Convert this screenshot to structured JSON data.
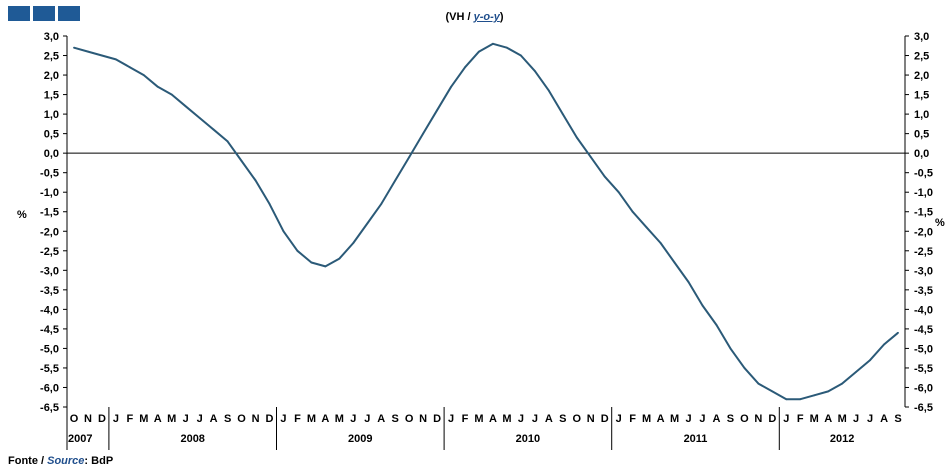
{
  "header": {
    "title_pt": "(VH /",
    "title_en": "y-o-y",
    "title_close": ")"
  },
  "footer": {
    "source_label_pt": "Fonte /",
    "source_label_en": "Source",
    "source_sep": ":",
    "source_value": "BdP"
  },
  "colors": {
    "line": "#2b5a78",
    "logo": "#1f5a96",
    "accent_text": "#1f4e8c"
  },
  "chart_data": {
    "type": "line",
    "ylabel_left": "%",
    "ylabel_right": "%",
    "ylim": [
      -6.5,
      3.0
    ],
    "ytick_step": 0.5,
    "ytick_labels": [
      "3,0",
      "2,5",
      "2,0",
      "1,5",
      "1,0",
      "0,5",
      "0,0",
      "-0,5",
      "-1,0",
      "-1,5",
      "-2,0",
      "-2,5",
      "-3,0",
      "-3,5",
      "-4,0",
      "-4,5",
      "-5,0",
      "-5,5",
      "-6,0",
      "-6,5"
    ],
    "x_months": [
      "O",
      "N",
      "D",
      "J",
      "F",
      "M",
      "A",
      "M",
      "J",
      "J",
      "A",
      "S",
      "O",
      "N",
      "D",
      "J",
      "F",
      "M",
      "A",
      "M",
      "J",
      "J",
      "A",
      "S",
      "O",
      "N",
      "D",
      "J",
      "F",
      "M",
      "A",
      "M",
      "J",
      "J",
      "A",
      "S",
      "O",
      "N",
      "D",
      "J",
      "F",
      "M",
      "A",
      "M",
      "J",
      "J",
      "A",
      "S",
      "O",
      "N",
      "D",
      "J",
      "F",
      "M",
      "A",
      "M",
      "J",
      "J",
      "A",
      "S"
    ],
    "year_labels": [
      "2007",
      "2008",
      "2009",
      "2010",
      "2011",
      "2012"
    ],
    "year_month_counts": [
      3,
      12,
      12,
      12,
      12,
      9
    ],
    "grid": false,
    "series": [
      {
        "values": [
          2.7,
          2.6,
          2.5,
          2.4,
          2.2,
          2.0,
          1.7,
          1.5,
          1.2,
          0.9,
          0.6,
          0.3,
          -0.2,
          -0.7,
          -1.3,
          -2.0,
          -2.5,
          -2.8,
          -2.9,
          -2.7,
          -2.3,
          -1.8,
          -1.3,
          -0.7,
          -0.1,
          0.5,
          1.1,
          1.7,
          2.2,
          2.6,
          2.8,
          2.7,
          2.5,
          2.1,
          1.6,
          1.0,
          0.4,
          -0.1,
          -0.6,
          -1.0,
          -1.5,
          -1.9,
          -2.3,
          -2.8,
          -3.3,
          -3.9,
          -4.4,
          -5.0,
          -5.5,
          -5.9,
          -6.1,
          -6.3,
          -6.3,
          -6.2,
          -6.1,
          -5.9,
          -5.6,
          -5.3,
          -4.9,
          -4.6
        ]
      }
    ]
  }
}
